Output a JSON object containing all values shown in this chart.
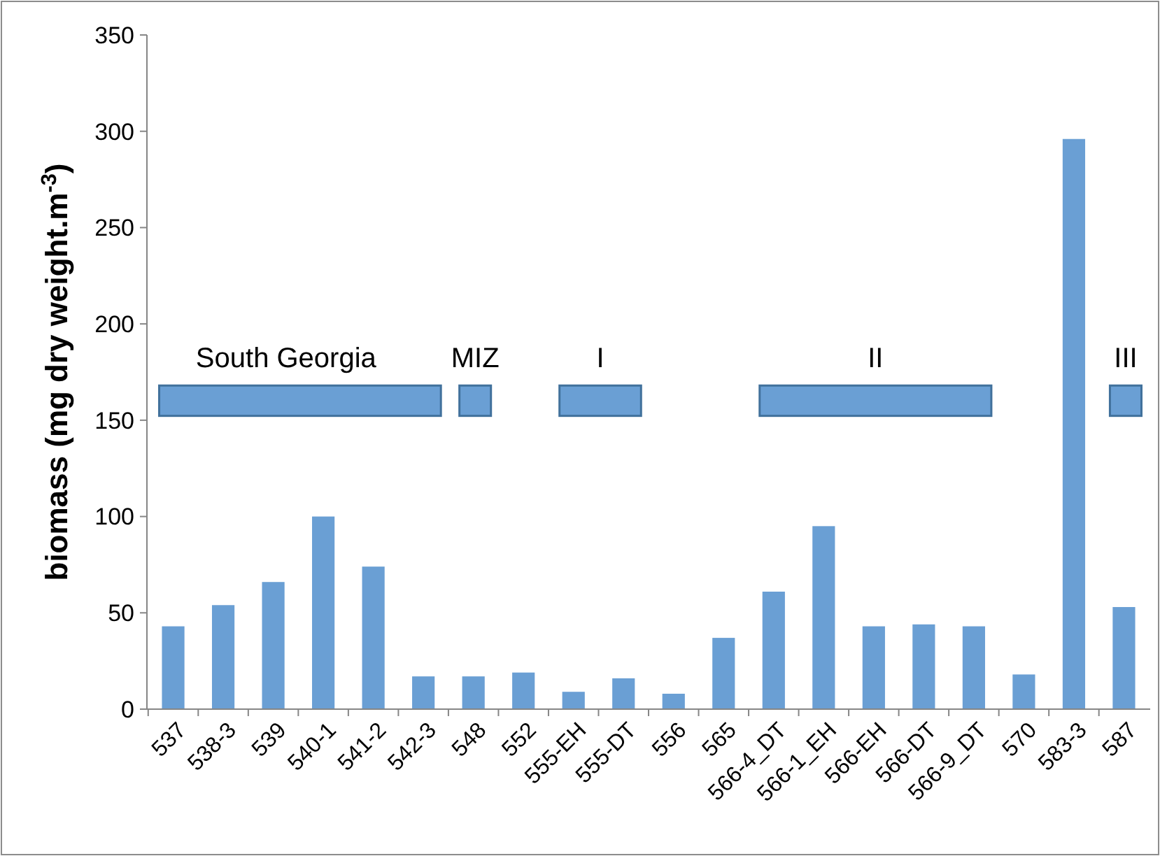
{
  "chart_data": {
    "type": "bar",
    "ylabel": "biomass (mg dry weight.m$^{-3}$)",
    "categories": [
      "537",
      "538-3",
      "539",
      "540-1",
      "541-2",
      "542-3",
      "548",
      "552",
      "555-EH",
      "555-DT",
      "556",
      "565",
      "566-4_DT",
      "566-1_EH",
      "566-EH",
      "566-DT",
      "566-9_DT",
      "570",
      "583-3",
      "587"
    ],
    "values": [
      43,
      54,
      66,
      100,
      74,
      17,
      17,
      19,
      9,
      16,
      8,
      37,
      61,
      95,
      43,
      44,
      43,
      18,
      296,
      53
    ],
    "color": "#6a9fd4",
    "ylim": [
      0,
      350
    ],
    "yticks": [
      0,
      50,
      100,
      150,
      200,
      250,
      300,
      350
    ],
    "grid": false,
    "annotations": [
      "South Georgia",
      "MIZ",
      "I",
      "II",
      "III"
    ]
  }
}
